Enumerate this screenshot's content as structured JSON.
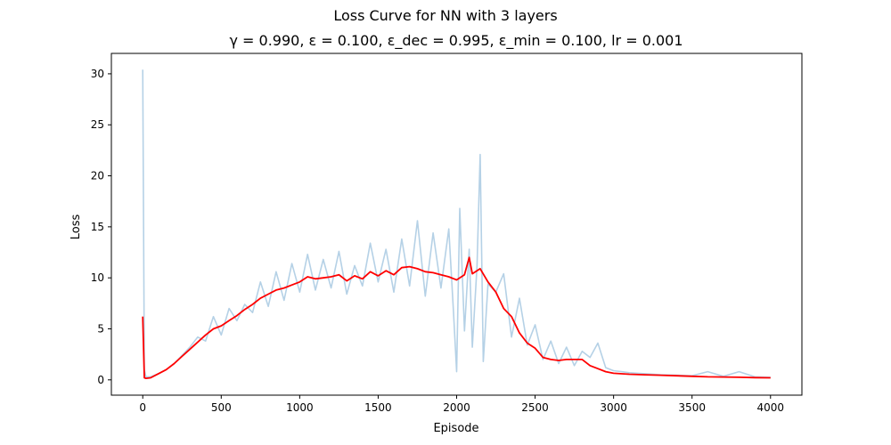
{
  "chart_data": {
    "type": "line",
    "suptitle": "Loss Curve for NN with 3 layers",
    "title": "γ = 0.990, ε = 0.100, ε_dec = 0.995, ε_min = 0.100, lr = 0.001",
    "xlabel": "Episode",
    "ylabel": "Loss",
    "xlim": [
      -200,
      4200
    ],
    "ylim": [
      -1.5,
      32
    ],
    "xticks": [
      0,
      500,
      1000,
      1500,
      2000,
      2500,
      3000,
      3500,
      4000
    ],
    "xtick_labels": [
      "0",
      "500",
      "1000",
      "1500",
      "2000",
      "2500",
      "3000",
      "3500",
      "4000"
    ],
    "yticks": [
      0,
      5,
      10,
      15,
      20,
      25,
      30
    ],
    "ytick_labels": [
      "0",
      "5",
      "10",
      "15",
      "20",
      "25",
      "30"
    ],
    "grid": false,
    "legend": "none",
    "series": [
      {
        "role": "raw",
        "color": "#b5d1e6",
        "x": [
          0,
          10,
          20,
          50,
          100,
          150,
          200,
          250,
          300,
          350,
          400,
          450,
          500,
          550,
          600,
          650,
          700,
          750,
          800,
          850,
          900,
          950,
          1000,
          1050,
          1100,
          1150,
          1200,
          1250,
          1300,
          1350,
          1400,
          1450,
          1500,
          1550,
          1600,
          1650,
          1700,
          1750,
          1800,
          1850,
          1900,
          1950,
          1980,
          2000,
          2020,
          2050,
          2080,
          2100,
          2130,
          2150,
          2170,
          2200,
          2250,
          2300,
          2350,
          2400,
          2450,
          2500,
          2550,
          2600,
          2650,
          2700,
          2750,
          2800,
          2850,
          2900,
          2950,
          3000,
          3050,
          3100,
          3200,
          3300,
          3400,
          3500,
          3600,
          3700,
          3800,
          3900,
          4000
        ],
        "y": [
          30.4,
          1.0,
          0.3,
          0.3,
          0.6,
          1.0,
          1.6,
          2.4,
          3.2,
          4.2,
          3.8,
          6.2,
          4.4,
          7.0,
          5.8,
          7.4,
          6.6,
          9.6,
          7.2,
          10.6,
          7.8,
          11.4,
          8.6,
          12.3,
          8.8,
          11.8,
          9.0,
          12.6,
          8.4,
          11.2,
          9.2,
          13.4,
          9.6,
          12.8,
          8.6,
          13.8,
          9.2,
          15.6,
          8.2,
          14.4,
          9.0,
          14.8,
          6.6,
          0.8,
          16.8,
          4.8,
          12.8,
          3.2,
          11.2,
          22.1,
          1.8,
          9.4,
          8.6,
          10.4,
          4.2,
          8.0,
          3.4,
          5.4,
          2.0,
          3.8,
          1.6,
          3.2,
          1.4,
          2.8,
          2.2,
          3.6,
          1.2,
          0.9,
          0.8,
          0.7,
          0.6,
          0.5,
          0.45,
          0.4,
          0.8,
          0.35,
          0.8,
          0.3,
          0.25
        ]
      },
      {
        "role": "smoothed",
        "color": "#ff0000",
        "x": [
          0,
          10,
          20,
          50,
          100,
          150,
          200,
          250,
          300,
          350,
          400,
          450,
          500,
          550,
          600,
          650,
          700,
          750,
          800,
          850,
          900,
          950,
          1000,
          1050,
          1100,
          1150,
          1200,
          1250,
          1300,
          1350,
          1400,
          1450,
          1500,
          1550,
          1600,
          1650,
          1700,
          1750,
          1800,
          1850,
          1900,
          1950,
          2000,
          2050,
          2080,
          2100,
          2150,
          2200,
          2250,
          2300,
          2350,
          2400,
          2450,
          2500,
          2550,
          2600,
          2650,
          2700,
          2750,
          2800,
          2850,
          2900,
          2950,
          3000,
          3100,
          3200,
          3300,
          3400,
          3500,
          3600,
          3700,
          3800,
          3900,
          4000
        ],
        "y": [
          6.2,
          0.2,
          0.15,
          0.2,
          0.6,
          1.0,
          1.6,
          2.3,
          3.0,
          3.7,
          4.4,
          5.0,
          5.3,
          5.8,
          6.3,
          6.9,
          7.4,
          8.0,
          8.4,
          8.8,
          9.0,
          9.3,
          9.6,
          10.1,
          9.9,
          10.0,
          10.1,
          10.3,
          9.7,
          10.2,
          9.9,
          10.6,
          10.2,
          10.7,
          10.3,
          11.0,
          11.1,
          10.9,
          10.6,
          10.5,
          10.3,
          10.1,
          9.8,
          10.3,
          12.0,
          10.4,
          10.9,
          9.6,
          8.6,
          7.0,
          6.2,
          4.6,
          3.6,
          3.1,
          2.2,
          2.0,
          1.9,
          2.0,
          2.0,
          2.0,
          1.4,
          1.1,
          0.8,
          0.65,
          0.55,
          0.5,
          0.45,
          0.4,
          0.35,
          0.3,
          0.28,
          0.25,
          0.22,
          0.2
        ]
      }
    ]
  }
}
